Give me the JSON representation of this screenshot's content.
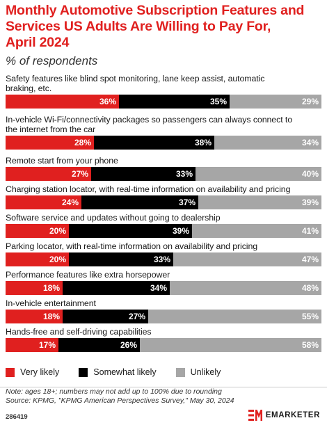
{
  "header": {
    "title": "Monthly Automotive Subscription Features and\nServices US Adults Are Willing to Pay For,\nApril 2024",
    "subtitle": "% of respondents"
  },
  "colors": {
    "very_likely": "#e0201f",
    "somewhat_likely": "#000000",
    "unlikely": "#a6a6a6",
    "title": "#e0201f"
  },
  "chart_data": {
    "type": "bar",
    "stacked": true,
    "orientation": "horizontal",
    "title": "Monthly Automotive Subscription Features and Services US Adults Are Willing to Pay For, April 2024",
    "subtitle": "% of respondents",
    "categories": [
      "Safety features like blind spot monitoring, lane keep assist, automatic braking, etc.",
      "In-vehicle Wi-Fi/connectivity packages so passengers can always connect to the internet from the car",
      "Remote start from your phone",
      "Charging station locator, with real-time information on availability and pricing",
      "Software service and updates without going to dealership",
      "Parking locator, with real-time information on availability and pricing",
      "Performance features like extra horsepower",
      "In-vehicle entertainment",
      "Hands-free and self-driving capabilities"
    ],
    "display_labels": [
      "Safety features like blind spot monitoring, lane keep assist, automatic\nbraking, etc.",
      "In-vehicle Wi-Fi/connectivity packages so passengers can always connect to\nthe internet from the car",
      "Remote start from your phone",
      "Charging station locator, with real-time information on availability and pricing",
      "Software service and updates without going to dealership",
      "Parking locator, with real-time information on availability and pricing",
      "Performance features like extra horsepower",
      "In-vehicle entertainment",
      "Hands-free and self-driving capabilities"
    ],
    "series": [
      {
        "name": "Very likely",
        "values": [
          36,
          28,
          27,
          24,
          20,
          20,
          18,
          18,
          17
        ]
      },
      {
        "name": "Somewhat likely",
        "values": [
          35,
          38,
          33,
          37,
          39,
          33,
          34,
          27,
          26
        ]
      },
      {
        "name": "Unlikely",
        "values": [
          29,
          34,
          40,
          39,
          41,
          47,
          48,
          55,
          58
        ]
      }
    ],
    "value_suffix": "%",
    "legend_position": "bottom-left",
    "grid": false
  },
  "footer": {
    "note": "Note: ages 18+; numbers may not add up to 100% due to rounding",
    "source": "Source: KPMG, \"KPMG American Perspectives Survey,\" May 30, 2024",
    "chart_id": "286419",
    "brand": "EMARKETER"
  }
}
